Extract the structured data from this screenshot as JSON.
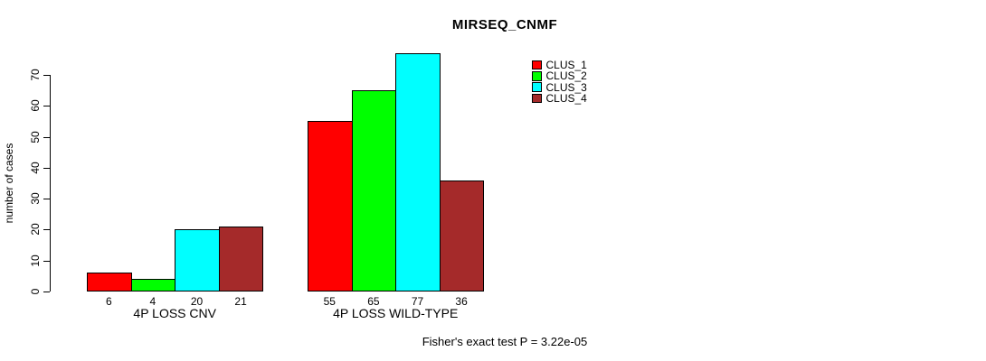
{
  "title": "MIRSEQ_CNMF",
  "footnote": "Fisher's exact test P = 3.22e-05",
  "chart_data": {
    "type": "bar",
    "title": "MIRSEQ_CNMF",
    "xlabel": "",
    "ylabel": "number of cases",
    "ylim": [
      0,
      70
    ],
    "yticks": [
      0,
      10,
      20,
      30,
      40,
      50,
      60,
      70
    ],
    "grid": false,
    "legend_position": "right",
    "categories": [
      "4P LOSS CNV",
      "4P LOSS WILD-TYPE"
    ],
    "series": [
      {
        "name": "CLUS_1",
        "color": "#ff0000",
        "values": [
          6,
          55
        ]
      },
      {
        "name": "CLUS_2",
        "color": "#00ff00",
        "values": [
          4,
          65
        ]
      },
      {
        "name": "CLUS_3",
        "color": "#00ffff",
        "values": [
          20,
          77
        ]
      },
      {
        "name": "CLUS_4",
        "color": "#a52a2a",
        "values": [
          21,
          36
        ]
      }
    ],
    "bar_value_labels": [
      [
        6,
        4,
        20,
        21
      ],
      [
        55,
        65,
        77,
        36
      ]
    ],
    "annotation": "Fisher's exact test P = 3.22e-05"
  }
}
